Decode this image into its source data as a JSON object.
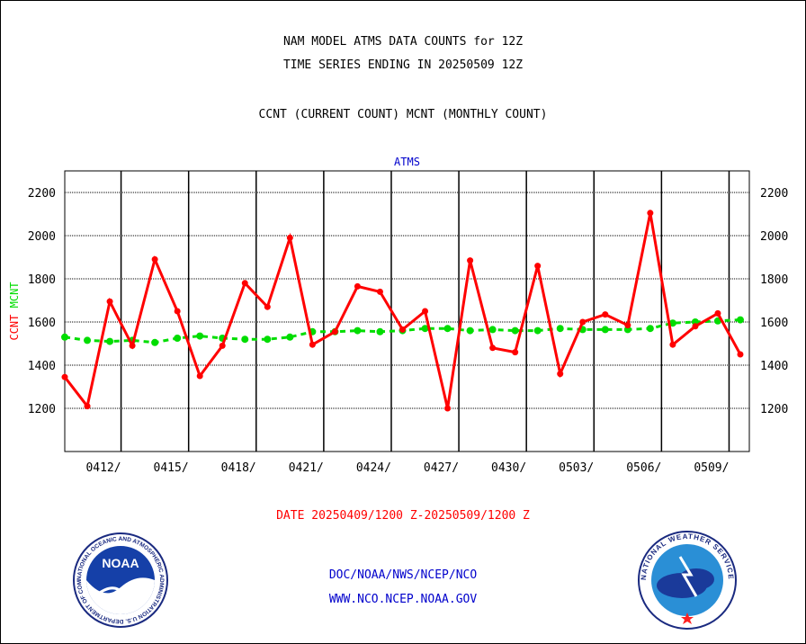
{
  "header": {
    "title_line1": "NAM MODEL ATMS DATA COUNTS for 12Z",
    "title_line2": "TIME SERIES ENDING IN 20250509 12Z",
    "subtitle": "CCNT (CURRENT COUNT) MCNT (MONTHLY COUNT)"
  },
  "footer": {
    "date_range": "DATE 20250409/1200 Z-20250509/1200 Z",
    "org_path": "DOC/NOAA/NWS/NCEP/NCO",
    "website": "WWW.NCO.NCEP.NOAA.GOV",
    "noaa_logo_text": "NOAA",
    "nws_logo_text": "NATIONAL WEATHER SERVICE",
    "noaa_ring_text": "NATIONAL OCEANIC AND ATMOSPHERIC ADMINISTRATION U.S. DEPARTMENT OF COMMERCE"
  },
  "colors": {
    "ccnt": "#ff0000",
    "mcnt": "#00dd00",
    "title_blue": "#0000cc",
    "date_red": "#ff0000"
  },
  "chart_data": {
    "type": "line",
    "title": "ATMS",
    "ylabel_parts": [
      {
        "text": "CCNT",
        "color": "#ff0000"
      },
      {
        "text": "MCNT",
        "color": "#00dd00"
      }
    ],
    "ylim": [
      1000,
      2300
    ],
    "yticks": [
      1200,
      1400,
      1600,
      1800,
      2000,
      2200
    ],
    "xlim": [
      0,
      30.4
    ],
    "xticks": [
      {
        "x": 2.5,
        "label": "0412/"
      },
      {
        "x": 5.5,
        "label": "0415/"
      },
      {
        "x": 8.5,
        "label": "0418/"
      },
      {
        "x": 11.5,
        "label": "0421/"
      },
      {
        "x": 14.5,
        "label": "0424/"
      },
      {
        "x": 17.5,
        "label": "0427/"
      },
      {
        "x": 20.5,
        "label": "0430/"
      },
      {
        "x": 23.5,
        "label": "0503/"
      },
      {
        "x": 26.5,
        "label": "0506/"
      },
      {
        "x": 29.5,
        "label": "0509/"
      }
    ],
    "x": [
      0,
      1,
      2,
      3,
      4,
      5,
      6,
      7,
      8,
      9,
      10,
      11,
      12,
      13,
      14,
      15,
      16,
      17,
      18,
      19,
      20,
      21,
      22,
      23,
      24,
      25,
      26,
      27,
      28,
      29,
      30
    ],
    "series": [
      {
        "name": "CCNT",
        "color": "#ff0000",
        "values": [
          1345,
          1210,
          1695,
          1490,
          1890,
          1650,
          1350,
          1490,
          1780,
          1670,
          1990,
          1495,
          1555,
          1765,
          1740,
          1565,
          1650,
          1200,
          1885,
          1480,
          1460,
          1860,
          1360,
          1600,
          1635,
          1585,
          2105,
          1495,
          1580,
          1640,
          1450
        ]
      },
      {
        "name": "MCNT",
        "color": "#00dd00",
        "values": [
          1530,
          1515,
          1510,
          1515,
          1505,
          1525,
          1535,
          1525,
          1520,
          1520,
          1530,
          1555,
          1555,
          1560,
          1555,
          1560,
          1570,
          1570,
          1560,
          1565,
          1560,
          1560,
          1570,
          1565,
          1565,
          1565,
          1570,
          1595,
          1600,
          1605,
          1610
        ]
      }
    ],
    "grid": true
  }
}
